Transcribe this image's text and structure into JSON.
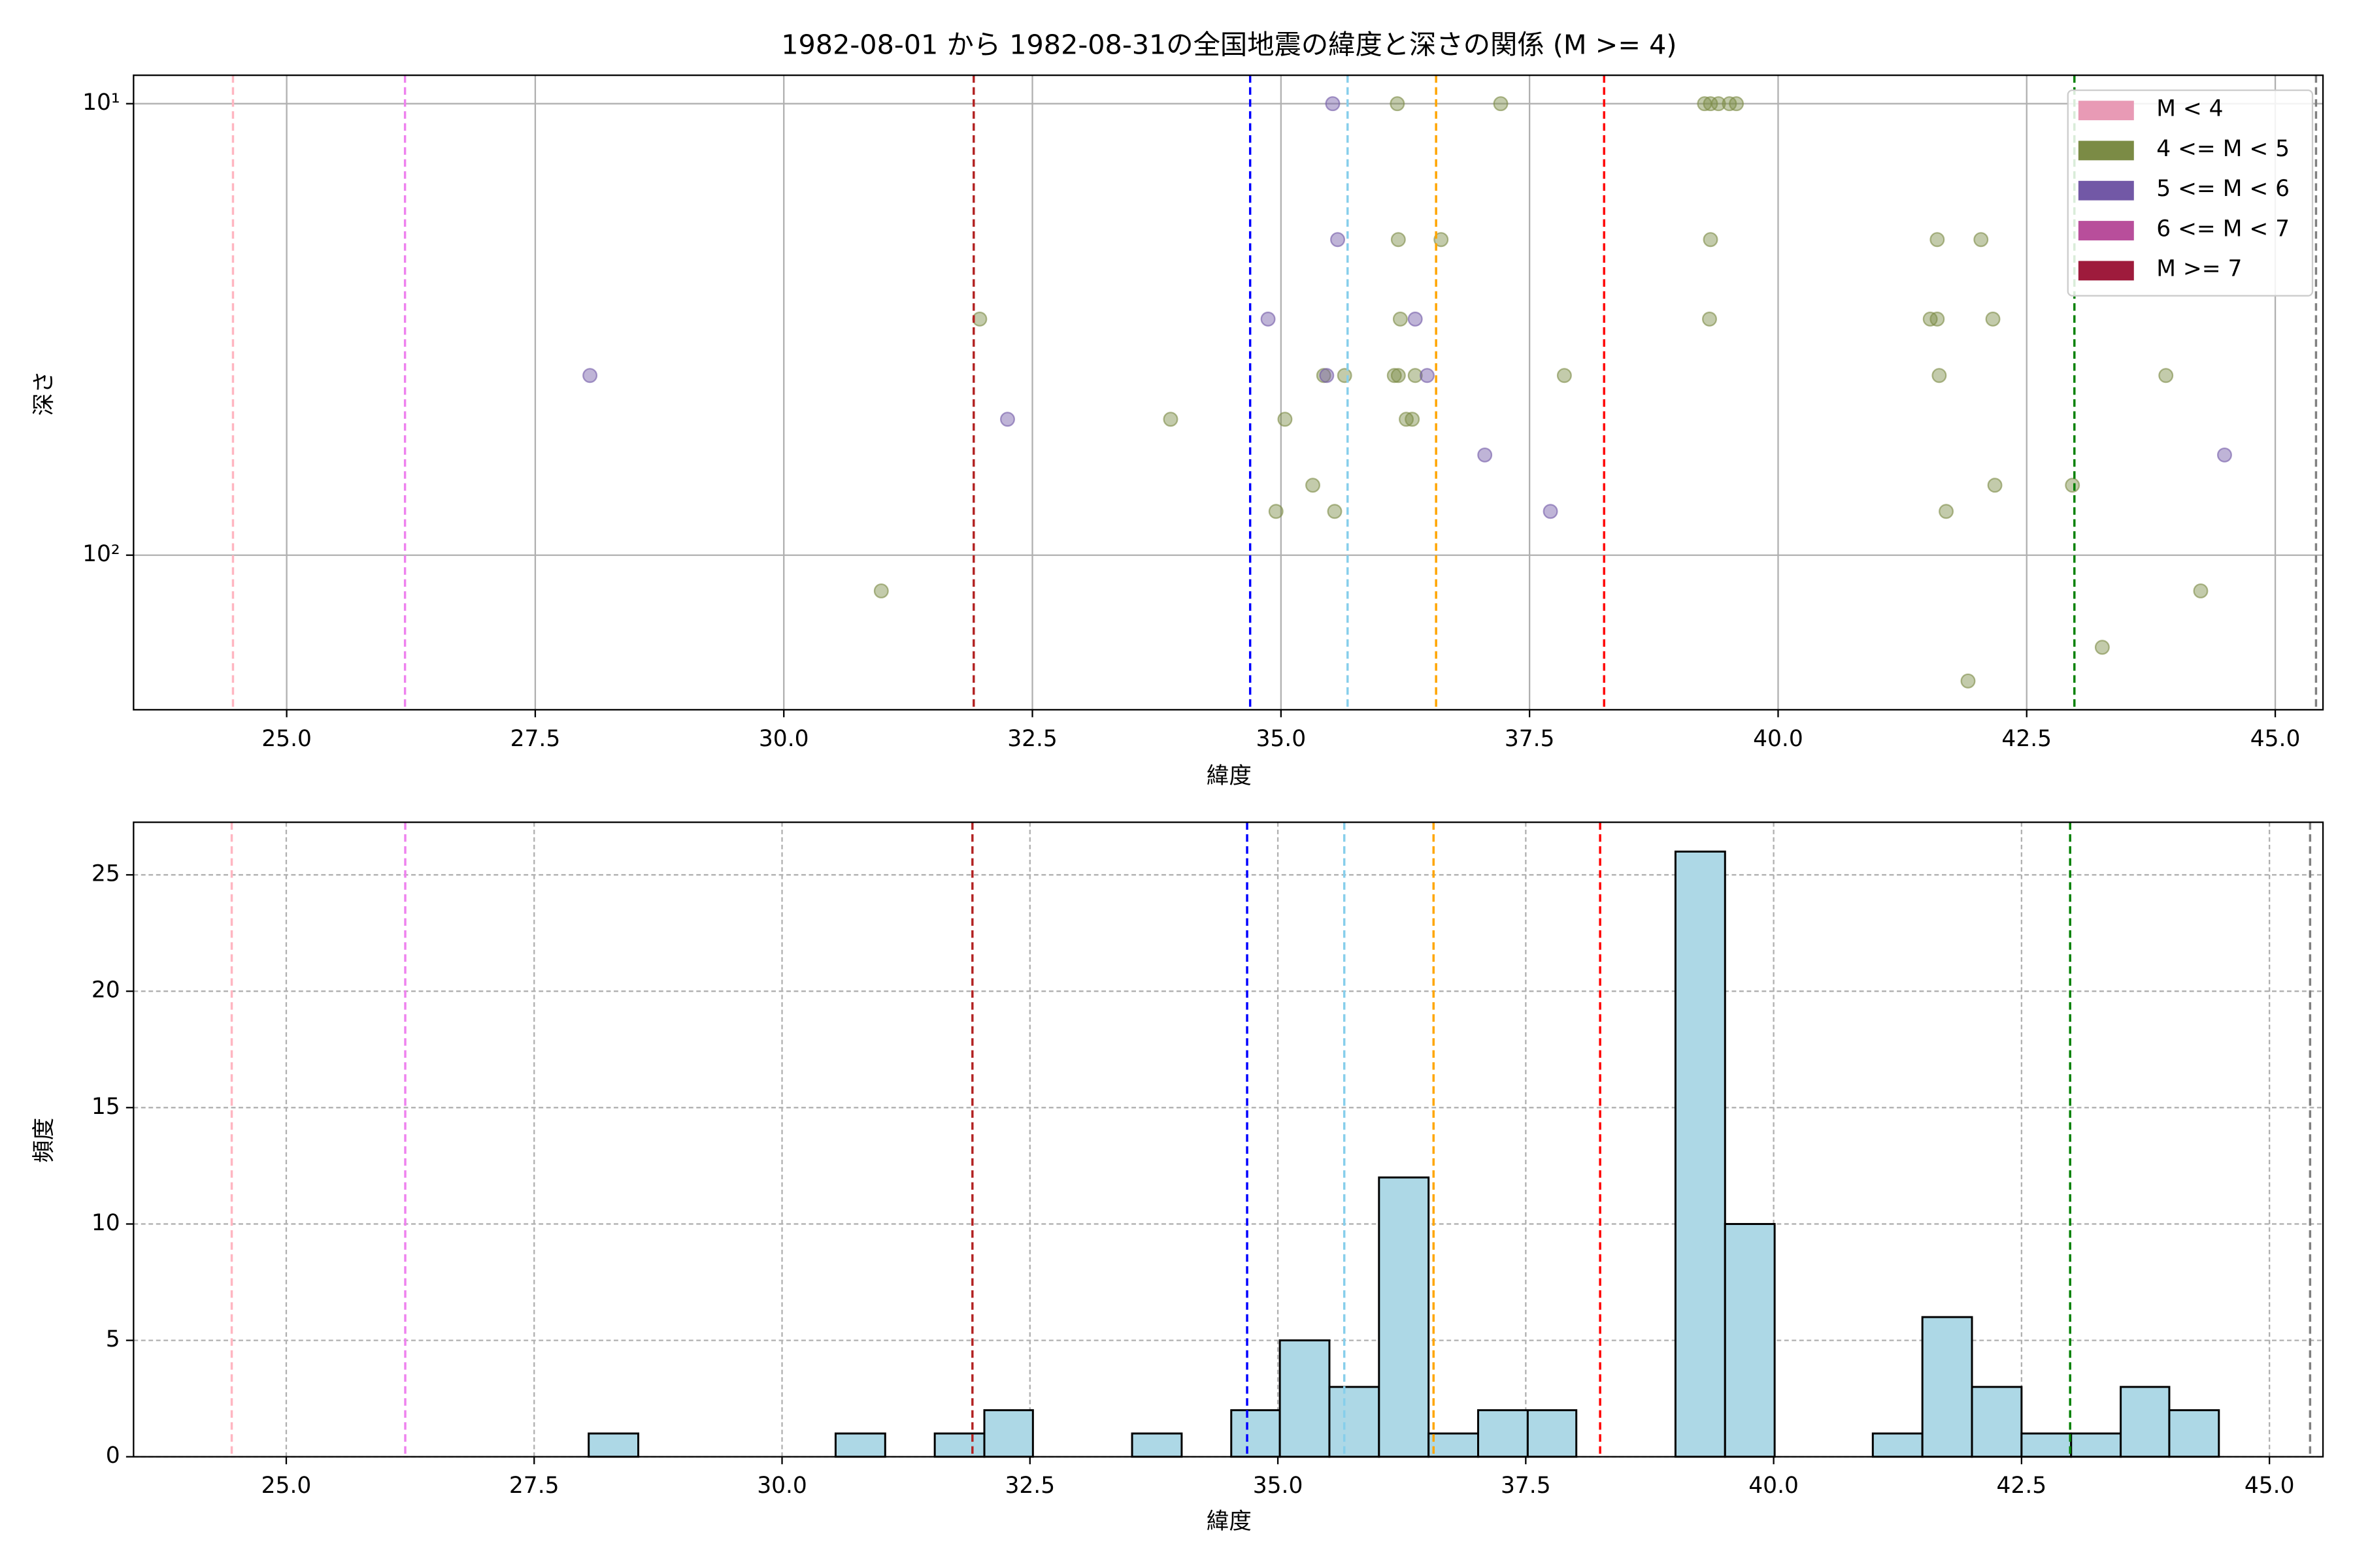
{
  "chart_data": [
    {
      "type": "scatter",
      "title": "1982-08-01 から 1982-08-31の全国地震の緯度と深さの関係 (M >= 4)",
      "x_label": "緯度",
      "y_label": "深さ",
      "xlim": [
        23.46,
        45.48
      ],
      "xticks": [
        {
          "value": 25,
          "label": "25.0"
        },
        27.5,
        {
          "value": 30,
          "label": "30.0"
        },
        32.5,
        {
          "value": 35,
          "label": "35.0"
        },
        37.5,
        {
          "value": 40,
          "label": "40.0"
        },
        42.5,
        {
          "value": 45,
          "label": "45.0"
        }
      ],
      "ylim": [
        8.65,
        220
      ],
      "y_log": true,
      "y_inverted": true,
      "yticks": [
        {
          "value": 10,
          "label": "10¹"
        },
        {
          "value": 100,
          "label": "10²"
        }
      ],
      "grid": true,
      "legend": "upper right",
      "series": [
        {
          "name": "M < 4",
          "color": "#e89ab5",
          "x": [],
          "y": []
        },
        {
          "name": "4 <= M < 5",
          "color": "#7b8b45",
          "x": [
            36.17,
            37.21,
            39.26,
            39.32,
            39.4,
            39.51,
            39.58,
            36.18,
            36.61,
            39.32,
            41.6,
            42.04,
            31.97,
            36.2,
            39.31,
            41.53,
            41.6,
            42.16,
            35.43,
            35.64,
            36.14,
            36.18,
            36.35,
            37.85,
            41.62,
            43.9,
            33.89,
            35.04,
            36.26,
            36.32,
            35.32,
            42.18,
            42.96,
            34.95,
            35.54,
            41.69,
            30.98,
            44.25,
            43.26,
            41.91
          ],
          "y": [
            10,
            10,
            10,
            10,
            10,
            10,
            10,
            20,
            20,
            20,
            20,
            20,
            30,
            30,
            30,
            30,
            30,
            30,
            40,
            40,
            40,
            40,
            40,
            40,
            40,
            40,
            50,
            50,
            50,
            50,
            70,
            70,
            70,
            80,
            80,
            80,
            120,
            120,
            160,
            190
          ]
        },
        {
          "name": "5 <= M < 6",
          "color": "#7258a6",
          "x": [
            35.52,
            35.57,
            34.87,
            36.35,
            28.05,
            35.46,
            36.47,
            32.25,
            37.05,
            37.71,
            44.49
          ],
          "y": [
            10,
            20,
            30,
            30,
            40,
            40,
            40,
            50,
            60,
            80,
            60
          ]
        },
        {
          "name": "6 <= M < 7",
          "color": "#b84e9b",
          "x": [],
          "y": []
        },
        {
          "name": "M >= 7",
          "color": "#9e1b3c",
          "x": [],
          "y": []
        }
      ],
      "vlines": [
        {
          "x": 24.46,
          "color": "#ffb6c1"
        },
        {
          "x": 26.19,
          "color": "#ee82ee"
        },
        {
          "x": 31.91,
          "color": "#b22222"
        },
        {
          "x": 34.69,
          "color": "#0000ff"
        },
        {
          "x": 35.67,
          "color": "#87ceeb"
        },
        {
          "x": 36.56,
          "color": "#ffa500"
        },
        {
          "x": 38.25,
          "color": "#ff0000"
        },
        {
          "x": 42.98,
          "color": "#008000"
        },
        {
          "x": 45.41,
          "color": "#808080"
        }
      ]
    },
    {
      "type": "histogram",
      "x_label": "緯度",
      "y_label": "頻度",
      "xlim": [
        23.46,
        45.54
      ],
      "xticks": [
        {
          "value": 25,
          "label": "25.0"
        },
        27.5,
        {
          "value": 30,
          "label": "30.0"
        },
        32.5,
        {
          "value": 35,
          "label": "35.0"
        },
        37.5,
        {
          "value": 40,
          "label": "40.0"
        },
        42.5,
        {
          "value": 45,
          "label": "45.0"
        }
      ],
      "ylim": [
        0,
        27.26
      ],
      "yticks": [
        0,
        5,
        10,
        15,
        20,
        25
      ],
      "grid": true,
      "grid_style": "dashed",
      "color": "#add8e6",
      "edge_color": "#000000",
      "bins": [
        28.05,
        28.55,
        29.05,
        29.54,
        30.04,
        30.54,
        31.04,
        31.54,
        32.04,
        32.53,
        33.03,
        33.53,
        34.03,
        34.53,
        35.02,
        35.52,
        36.02,
        36.52,
        37.02,
        37.52,
        38.01,
        38.51,
        39.01,
        39.51,
        40.01,
        40.51,
        41.0,
        41.5,
        42.0,
        42.5,
        43.0,
        43.5,
        43.99,
        44.49
      ],
      "counts": [
        1,
        0,
        0,
        0,
        0,
        1,
        0,
        1,
        2,
        0,
        0,
        1,
        0,
        2,
        5,
        3,
        12,
        1,
        2,
        2,
        0,
        0,
        26,
        10,
        0,
        0,
        1,
        6,
        3,
        1,
        1,
        3,
        2
      ],
      "vlines": [
        {
          "x": 24.45,
          "color": "#ffb6c1"
        },
        {
          "x": 26.2,
          "color": "#ee82ee"
        },
        {
          "x": 31.92,
          "color": "#b22222"
        },
        {
          "x": 34.69,
          "color": "#0000ff"
        },
        {
          "x": 35.67,
          "color": "#87ceeb"
        },
        {
          "x": 36.57,
          "color": "#ffa500"
        },
        {
          "x": 38.25,
          "color": "#ff0000"
        },
        {
          "x": 42.99,
          "color": "#008000"
        },
        {
          "x": 45.41,
          "color": "#808080"
        }
      ]
    }
  ]
}
